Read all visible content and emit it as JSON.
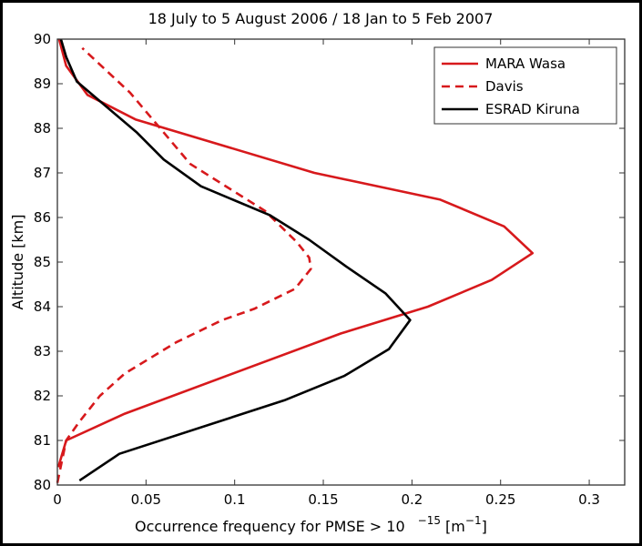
{
  "chart_data": {
    "type": "line",
    "title": "18 July to 5 August 2006 / 18 Jan to 5 Feb 2007",
    "xlabel": "Occurrence frequency for PMSE > 10",
    "xlabel_superscript": "−15",
    "xlabel_unit_prefix": " [m",
    "xlabel_unit_superscript": "−1",
    "xlabel_unit_suffix": "]",
    "ylabel": "Altitude [km]",
    "xlim": [
      0,
      0.32
    ],
    "ylim": [
      80,
      90
    ],
    "xticks": [
      "0",
      "0.05",
      "0.1",
      "0.15",
      "0.2",
      "0.25",
      "0.3"
    ],
    "xtick_values": [
      0,
      0.05,
      0.1,
      0.15,
      0.2,
      0.25,
      0.3
    ],
    "yticks": [
      "80",
      "81",
      "82",
      "83",
      "84",
      "85",
      "86",
      "87",
      "88",
      "89",
      "90"
    ],
    "ytick_values": [
      80,
      81,
      82,
      83,
      84,
      85,
      86,
      87,
      88,
      89,
      90
    ],
    "grid": false,
    "legend_position": "top-right",
    "series": [
      {
        "name": "MARA Wasa",
        "color": "#d7191c",
        "style": "solid",
        "points": [
          [
            0.0005,
            80.4
          ],
          [
            0.005,
            81.0
          ],
          [
            0.038,
            81.6
          ],
          [
            0.16,
            83.4
          ],
          [
            0.209,
            84.0
          ],
          [
            0.245,
            84.6
          ],
          [
            0.268,
            85.2
          ],
          [
            0.252,
            85.8
          ],
          [
            0.216,
            86.4
          ],
          [
            0.145,
            87.0
          ],
          [
            0.044,
            88.2
          ],
          [
            0.017,
            88.75
          ],
          [
            0.005,
            89.4
          ],
          [
            0.001,
            90.0
          ]
        ]
      },
      {
        "name": "Davis",
        "color": "#d7191c",
        "style": "dashed",
        "points": [
          [
            0.0,
            80.05
          ],
          [
            0.005,
            81.0
          ],
          [
            0.012,
            81.4
          ],
          [
            0.024,
            82.0
          ],
          [
            0.038,
            82.5
          ],
          [
            0.067,
            83.2
          ],
          [
            0.093,
            83.7
          ],
          [
            0.111,
            83.95
          ],
          [
            0.134,
            84.4
          ],
          [
            0.143,
            84.85
          ],
          [
            0.142,
            85.1
          ],
          [
            0.135,
            85.45
          ],
          [
            0.117,
            86.15
          ],
          [
            0.075,
            87.2
          ],
          [
            0.059,
            87.95
          ],
          [
            0.041,
            88.8
          ],
          [
            0.014,
            89.8
          ]
        ]
      },
      {
        "name": "ESRAD Kiruna",
        "color": "#000000",
        "style": "solid",
        "points": [
          [
            0.0125,
            80.1
          ],
          [
            0.035,
            80.7
          ],
          [
            0.128,
            81.9
          ],
          [
            0.162,
            82.45
          ],
          [
            0.187,
            83.05
          ],
          [
            0.199,
            83.7
          ],
          [
            0.185,
            84.3
          ],
          [
            0.163,
            84.9
          ],
          [
            0.142,
            85.5
          ],
          [
            0.12,
            86.05
          ],
          [
            0.081,
            86.7
          ],
          [
            0.06,
            87.3
          ],
          [
            0.045,
            87.9
          ],
          [
            0.011,
            89.05
          ],
          [
            0.005,
            89.6
          ],
          [
            0.002,
            90.0
          ]
        ]
      }
    ]
  }
}
